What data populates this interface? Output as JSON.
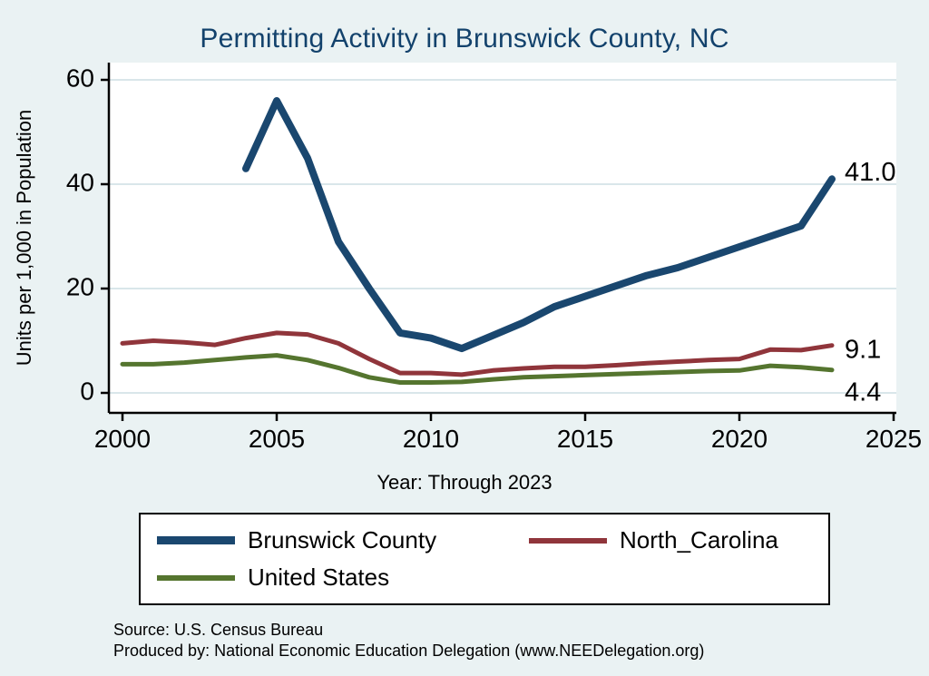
{
  "chart_data": {
    "type": "line",
    "title": "Permitting Activity in Brunswick County, NC",
    "xlabel": "Year: Through 2023",
    "ylabel": "Units per 1,000 in Population",
    "xlim": [
      2000,
      2025
    ],
    "ylim": [
      0,
      60
    ],
    "xticks": [
      2000,
      2005,
      2010,
      2015,
      2020,
      2025
    ],
    "yticks": [
      0,
      20,
      40,
      60
    ],
    "grid": "horizontal",
    "background": "#eaf2f3",
    "plot_background": "#ffffff",
    "grid_color": "#d9e6ea",
    "title_color": "#13426c",
    "axis_color": "#000000",
    "legend": {
      "position": "bottom",
      "columns": 2
    },
    "series": [
      {
        "name": "Brunswick County",
        "color": "#1a476f",
        "line_width": 8,
        "x": [
          2004,
          2005,
          2006,
          2007,
          2008,
          2009,
          2010,
          2011,
          2012,
          2013,
          2014,
          2015,
          2016,
          2017,
          2018,
          2019,
          2020,
          2021,
          2022,
          2023
        ],
        "y": [
          43,
          56,
          45,
          29,
          20,
          11.5,
          10.5,
          8.5,
          11,
          13.5,
          16.5,
          18.5,
          20.5,
          22.5,
          24,
          26,
          28,
          30,
          32,
          41
        ]
      },
      {
        "name": "North_Carolina",
        "color": "#90353b",
        "line_width": 5,
        "x": [
          2000,
          2001,
          2002,
          2003,
          2004,
          2005,
          2006,
          2007,
          2008,
          2009,
          2010,
          2011,
          2012,
          2013,
          2014,
          2015,
          2016,
          2017,
          2018,
          2019,
          2020,
          2021,
          2022,
          2023
        ],
        "y": [
          9.5,
          10,
          9.7,
          9.2,
          10.5,
          11.5,
          11.2,
          9.5,
          6.5,
          3.8,
          3.8,
          3.5,
          4.3,
          4.7,
          5,
          5,
          5.3,
          5.7,
          6,
          6.3,
          6.5,
          8.3,
          8.2,
          9.1
        ]
      },
      {
        "name": "United States",
        "color": "#55752f",
        "line_width": 5,
        "x": [
          2000,
          2001,
          2002,
          2003,
          2004,
          2005,
          2006,
          2007,
          2008,
          2009,
          2010,
          2011,
          2012,
          2013,
          2014,
          2015,
          2016,
          2017,
          2018,
          2019,
          2020,
          2021,
          2022,
          2023
        ],
        "y": [
          5.5,
          5.5,
          5.8,
          6.3,
          6.8,
          7.2,
          6.3,
          4.8,
          3,
          2,
          2,
          2.1,
          2.6,
          3,
          3.2,
          3.4,
          3.6,
          3.8,
          4,
          4.2,
          4.3,
          5.2,
          4.9,
          4.4
        ]
      }
    ],
    "end_labels": [
      {
        "x": 2023,
        "value": 41.0,
        "text": "41.0",
        "dy": -6
      },
      {
        "x": 2023,
        "value": 9.1,
        "text": "9.1",
        "dy": 6
      },
      {
        "x": 2023,
        "value": 4.4,
        "text": "4.4",
        "dy": 26
      }
    ]
  },
  "footer": {
    "source": "Source: U.S. Census Bureau",
    "produced_by": "Produced by: National Economic Education Delegation (www.NEEDelegation.org)"
  }
}
